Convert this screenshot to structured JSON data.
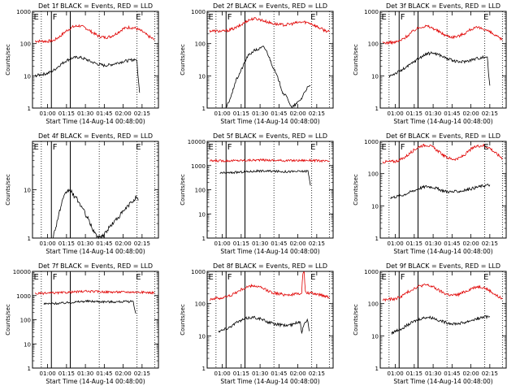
{
  "chart_data": [
    {
      "type": "line",
      "title": "Det 1f BLACK = Events, RED = LLD",
      "xlabel": "Start Time (14-Aug-14 00:48:00)",
      "ylabel": "Counts/sec",
      "ylog": true,
      "ylim": [
        1,
        1000
      ],
      "yticks": [
        "1",
        "10",
        "100",
        "1000"
      ],
      "xlim": [
        "00:48",
        "02:28"
      ],
      "xticks": [
        "01:00",
        "01:15",
        "01:30",
        "01:45",
        "02:00",
        "02:15"
      ],
      "markers": [
        "E",
        "F",
        "E"
      ],
      "grid": false,
      "series": [
        {
          "name": "RED = LLD",
          "color": "#e00000",
          "x": [
            "00:50",
            "01:00",
            "01:05",
            "01:10",
            "01:15",
            "01:20",
            "01:25",
            "01:30",
            "01:35",
            "01:40",
            "01:45",
            "01:50",
            "01:55",
            "02:00",
            "02:05",
            "02:10",
            "02:15",
            "02:20",
            "02:25"
          ],
          "y": [
            120,
            118,
            125,
            170,
            250,
            330,
            360,
            310,
            230,
            175,
            155,
            165,
            210,
            290,
            320,
            300,
            240,
            170,
            130
          ]
        },
        {
          "name": "BLACK = Events",
          "color": "#000000",
          "x": [
            "00:50",
            "00:55",
            "01:00",
            "01:05",
            "01:10",
            "01:15",
            "01:20",
            "01:25",
            "01:30",
            "01:35",
            "01:40",
            "01:45",
            "01:50",
            "01:55",
            "02:00",
            "02:05",
            "02:10",
            "02:11",
            "02:12",
            "02:13"
          ],
          "y": [
            10,
            11,
            12,
            15,
            22,
            30,
            36,
            38,
            33,
            27,
            23,
            21,
            22,
            25,
            28,
            30,
            33,
            25,
            8,
            3
          ]
        }
      ]
    },
    {
      "type": "line",
      "title": "Det 2f BLACK = Events, RED = LLD",
      "xlabel": "Start Time (14-Aug-14 00:48:00)",
      "ylabel": "Counts/sec",
      "ylog": true,
      "ylim": [
        1,
        1000
      ],
      "yticks": [
        "1",
        "10",
        "100",
        "1000"
      ],
      "xlim": [
        "00:48",
        "02:28"
      ],
      "xticks": [
        "01:00",
        "01:15",
        "01:30",
        "01:45",
        "02:00",
        "02:15"
      ],
      "markers": [
        "E",
        "F",
        "E"
      ],
      "grid": false,
      "series": [
        {
          "name": "RED = LLD",
          "color": "#e00000",
          "x": [
            "00:50",
            "01:00",
            "01:05",
            "01:10",
            "01:15",
            "01:20",
            "01:25",
            "01:30",
            "01:35",
            "01:40",
            "01:45",
            "01:50",
            "01:55",
            "02:00",
            "02:05",
            "02:10",
            "02:15",
            "02:20",
            "02:25"
          ],
          "y": [
            250,
            240,
            260,
            300,
            380,
            520,
            600,
            560,
            480,
            420,
            390,
            380,
            410,
            450,
            470,
            430,
            340,
            270,
            230
          ]
        },
        {
          "name": "BLACK = Events",
          "color": "#000000",
          "x": [
            "01:03",
            "01:05",
            "01:08",
            "01:10",
            "01:15",
            "01:20",
            "01:25",
            "01:30",
            "01:33",
            "01:36",
            "01:40",
            "01:45",
            "01:48",
            "01:52",
            "01:55",
            "02:00",
            "02:03",
            "02:05",
            "02:07",
            "02:10"
          ],
          "y": [
            1,
            1.5,
            3,
            6,
            15,
            40,
            60,
            70,
            80,
            50,
            20,
            7,
            3,
            2,
            1,
            1.5,
            2,
            3,
            4,
            5
          ]
        }
      ]
    },
    {
      "type": "line",
      "title": "Det 3f BLACK = Events, RED = LLD",
      "xlabel": "Start Time (14-Aug-14 00:48:00)",
      "ylabel": "Counts/sec",
      "ylog": true,
      "ylim": [
        1,
        1000
      ],
      "yticks": [
        "1",
        "10",
        "100",
        "1000"
      ],
      "xlim": [
        "00:48",
        "02:28"
      ],
      "xticks": [
        "01:00",
        "01:15",
        "01:30",
        "01:45",
        "02:00",
        "02:15"
      ],
      "markers": [
        "E",
        "F",
        "E"
      ],
      "grid": false,
      "series": [
        {
          "name": "RED = LLD",
          "color": "#e00000",
          "x": [
            "00:50",
            "01:00",
            "01:05",
            "01:10",
            "01:15",
            "01:20",
            "01:25",
            "01:30",
            "01:35",
            "01:40",
            "01:45",
            "01:50",
            "01:55",
            "02:00",
            "02:05",
            "02:10",
            "02:15",
            "02:20",
            "02:25"
          ],
          "y": [
            105,
            110,
            130,
            180,
            260,
            330,
            350,
            300,
            230,
            180,
            160,
            170,
            210,
            280,
            310,
            290,
            230,
            170,
            130
          ]
        },
        {
          "name": "BLACK = Events",
          "color": "#000000",
          "x": [
            "00:55",
            "01:00",
            "01:05",
            "01:10",
            "01:15",
            "01:20",
            "01:25",
            "01:30",
            "01:35",
            "01:40",
            "01:45",
            "01:50",
            "01:55",
            "02:00",
            "02:05",
            "02:10",
            "02:13",
            "02:14",
            "02:15"
          ],
          "y": [
            10,
            12,
            15,
            20,
            28,
            38,
            48,
            52,
            45,
            36,
            30,
            27,
            28,
            31,
            35,
            38,
            40,
            12,
            5
          ]
        }
      ]
    },
    {
      "type": "line",
      "title": "Det 4f BLACK = Events, RED = LLD",
      "xlabel": "Start Time (14-Aug-14 00:48:00)",
      "ylabel": "Counts/sec",
      "ylog": true,
      "ylim": [
        1,
        100
      ],
      "yticks": [
        "1",
        "10"
      ],
      "xlim": [
        "00:48",
        "02:28"
      ],
      "xticks": [
        "01:00",
        "01:15",
        "01:30",
        "01:45",
        "02:00",
        "02:15"
      ],
      "markers": [
        "E",
        "F",
        "E"
      ],
      "grid": false,
      "series": [
        {
          "name": "BLACK = Events",
          "color": "#000000",
          "x": [
            "01:04",
            "01:06",
            "01:08",
            "01:10",
            "01:12",
            "01:15",
            "01:18",
            "01:20",
            "01:24",
            "01:28",
            "01:32",
            "01:36",
            "01:40",
            "01:45",
            "01:50",
            "01:55",
            "02:00",
            "02:05",
            "02:08",
            "02:10",
            "02:12"
          ],
          "y": [
            1,
            1.5,
            2.5,
            4,
            6,
            9,
            10,
            8,
            6,
            4,
            2.5,
            1.5,
            1,
            1.2,
            1.8,
            2.5,
            3.5,
            5,
            6,
            7,
            6
          ]
        }
      ]
    },
    {
      "type": "line",
      "title": "Det 5f BLACK = Events, RED = LLD",
      "xlabel": "Start Time (14-Aug-14 00:48:00)",
      "ylabel": "Counts/sec",
      "ylog": true,
      "ylim": [
        1,
        10000
      ],
      "yticks": [
        "1",
        "10",
        "100",
        "1000",
        "10000"
      ],
      "xlim": [
        "00:48",
        "02:28"
      ],
      "xticks": [
        "01:00",
        "01:15",
        "01:30",
        "01:45",
        "02:00",
        "02:15"
      ],
      "markers": [
        "E",
        "F",
        "E"
      ],
      "grid": false,
      "series": [
        {
          "name": "RED = LLD",
          "color": "#e00000",
          "x": [
            "00:50",
            "01:10",
            "01:30",
            "01:50",
            "02:10",
            "02:25"
          ],
          "y": [
            1550,
            1600,
            1700,
            1600,
            1650,
            1500
          ]
        },
        {
          "name": "BLACK = Events",
          "color": "#000000",
          "x": [
            "00:58",
            "01:10",
            "01:30",
            "01:50",
            "02:05",
            "02:08",
            "02:09",
            "02:10"
          ],
          "y": [
            480,
            520,
            600,
            560,
            580,
            600,
            300,
            150
          ]
        }
      ]
    },
    {
      "type": "line",
      "title": "Det 6f BLACK = Events, RED = LLD",
      "xlabel": "Start Time (14-Aug-14 00:48:00)",
      "ylabel": "Counts/sec",
      "ylog": true,
      "ylim": [
        1,
        1000
      ],
      "yticks": [
        "1",
        "10",
        "100",
        "1000"
      ],
      "xlim": [
        "00:48",
        "02:28"
      ],
      "xticks": [
        "01:00",
        "01:15",
        "01:30",
        "01:45",
        "02:00",
        "02:15"
      ],
      "markers": [
        "E",
        "F",
        "E"
      ],
      "grid": false,
      "series": [
        {
          "name": "RED = LLD",
          "color": "#e00000",
          "x": [
            "00:50",
            "01:00",
            "01:05",
            "01:10",
            "01:15",
            "01:20",
            "01:25",
            "01:30",
            "01:35",
            "01:40",
            "01:45",
            "01:50",
            "01:55",
            "02:00",
            "02:05",
            "02:10",
            "02:15",
            "02:20",
            "02:25"
          ],
          "y": [
            230,
            240,
            280,
            380,
            550,
            720,
            780,
            650,
            460,
            330,
            280,
            290,
            380,
            570,
            720,
            750,
            620,
            420,
            300
          ]
        },
        {
          "name": "BLACK = Events",
          "color": "#000000",
          "x": [
            "00:56",
            "01:00",
            "01:05",
            "01:10",
            "01:15",
            "01:20",
            "01:25",
            "01:30",
            "01:35",
            "01:40",
            "01:45",
            "01:50",
            "01:55",
            "02:00",
            "02:05",
            "02:10",
            "02:15"
          ],
          "y": [
            18,
            19,
            21,
            25,
            30,
            36,
            40,
            38,
            32,
            28,
            27,
            28,
            30,
            34,
            38,
            42,
            45
          ]
        }
      ]
    },
    {
      "type": "line",
      "title": "Det 7f BLACK = Events, RED = LLD",
      "xlabel": "Start Time (14-Aug-14 00:48:00)",
      "ylabel": "Counts/sec",
      "ylog": true,
      "ylim": [
        1,
        10000
      ],
      "yticks": [
        "1",
        "10",
        "100",
        "1000",
        "10000"
      ],
      "xlim": [
        "00:48",
        "02:28"
      ],
      "xticks": [
        "01:00",
        "01:15",
        "01:30",
        "01:45",
        "02:00",
        "02:15"
      ],
      "markers": [
        "E",
        "F",
        "E"
      ],
      "grid": false,
      "series": [
        {
          "name": "RED = LLD",
          "color": "#e00000",
          "x": [
            "00:50",
            "01:10",
            "01:30",
            "01:50",
            "02:10",
            "02:25"
          ],
          "y": [
            1200,
            1300,
            1500,
            1400,
            1400,
            1300
          ]
        },
        {
          "name": "BLACK = Events",
          "color": "#000000",
          "x": [
            "00:57",
            "01:10",
            "01:30",
            "01:50",
            "02:05",
            "02:08",
            "02:09",
            "02:10"
          ],
          "y": [
            450,
            480,
            580,
            550,
            560,
            600,
            300,
            180
          ]
        }
      ]
    },
    {
      "type": "line",
      "title": "Det 8f BLACK = Events, RED = LLD",
      "xlabel": "Start Time (14-Aug-14 00:48:00)",
      "ylabel": "Counts/sec",
      "ylog": true,
      "ylim": [
        1,
        1000
      ],
      "yticks": [
        "1",
        "10",
        "100",
        "1000"
      ],
      "xlim": [
        "00:48",
        "02:28"
      ],
      "xticks": [
        "01:00",
        "01:15",
        "01:30",
        "01:45",
        "02:00",
        "02:15"
      ],
      "markers": [
        "E",
        "F",
        "E"
      ],
      "grid": false,
      "series": [
        {
          "name": "RED = LLD",
          "color": "#e00000",
          "x": [
            "00:50",
            "01:00",
            "01:05",
            "01:10",
            "01:15",
            "01:20",
            "01:25",
            "01:30",
            "01:35",
            "01:40",
            "01:45",
            "01:50",
            "01:55",
            "02:00",
            "02:03",
            "02:04",
            "02:05",
            "02:06",
            "02:10",
            "02:15",
            "02:20",
            "02:25"
          ],
          "y": [
            140,
            150,
            170,
            210,
            270,
            330,
            360,
            320,
            260,
            220,
            200,
            190,
            190,
            200,
            220,
            900,
            900,
            220,
            210,
            200,
            180,
            160
          ]
        },
        {
          "name": "BLACK = Events",
          "color": "#000000",
          "x": [
            "00:57",
            "01:00",
            "01:05",
            "01:10",
            "01:15",
            "01:20",
            "01:25",
            "01:30",
            "01:35",
            "01:40",
            "01:45",
            "01:50",
            "01:55",
            "02:00",
            "02:02",
            "02:03",
            "02:05",
            "02:08",
            "02:09"
          ],
          "y": [
            14,
            15,
            18,
            24,
            30,
            36,
            38,
            34,
            28,
            24,
            22,
            21,
            22,
            26,
            28,
            12,
            26,
            30,
            14
          ]
        }
      ]
    },
    {
      "type": "line",
      "title": "Det 9f BLACK = Events, RED = LLD",
      "xlabel": "Start Time (14-Aug-14 00:48:00)",
      "ylabel": "Counts/sec",
      "ylog": true,
      "ylim": [
        1,
        1000
      ],
      "yticks": [
        "1",
        "10",
        "100",
        "1000"
      ],
      "xlim": [
        "00:48",
        "02:28"
      ],
      "xticks": [
        "01:00",
        "01:15",
        "01:30",
        "01:45",
        "02:00",
        "02:15"
      ],
      "markers": [
        "E",
        "F",
        "E"
      ],
      "grid": false,
      "series": [
        {
          "name": "RED = LLD",
          "color": "#e00000",
          "x": [
            "00:50",
            "01:00",
            "01:05",
            "01:10",
            "01:15",
            "01:20",
            "01:25",
            "01:30",
            "01:35",
            "01:40",
            "01:45",
            "01:50",
            "01:55",
            "02:00",
            "02:05",
            "02:10",
            "02:15",
            "02:20",
            "02:25"
          ],
          "y": [
            130,
            140,
            170,
            230,
            300,
            360,
            380,
            330,
            250,
            200,
            180,
            190,
            230,
            290,
            340,
            320,
            250,
            180,
            140
          ]
        },
        {
          "name": "BLACK = Events",
          "color": "#000000",
          "x": [
            "00:57",
            "01:00",
            "01:05",
            "01:10",
            "01:15",
            "01:20",
            "01:25",
            "01:30",
            "01:35",
            "01:40",
            "01:45",
            "01:50",
            "01:55",
            "02:00",
            "02:05",
            "02:10",
            "02:15"
          ],
          "y": [
            12,
            14,
            17,
            22,
            28,
            34,
            38,
            36,
            30,
            26,
            24,
            24,
            26,
            30,
            34,
            38,
            40
          ]
        }
      ]
    }
  ]
}
